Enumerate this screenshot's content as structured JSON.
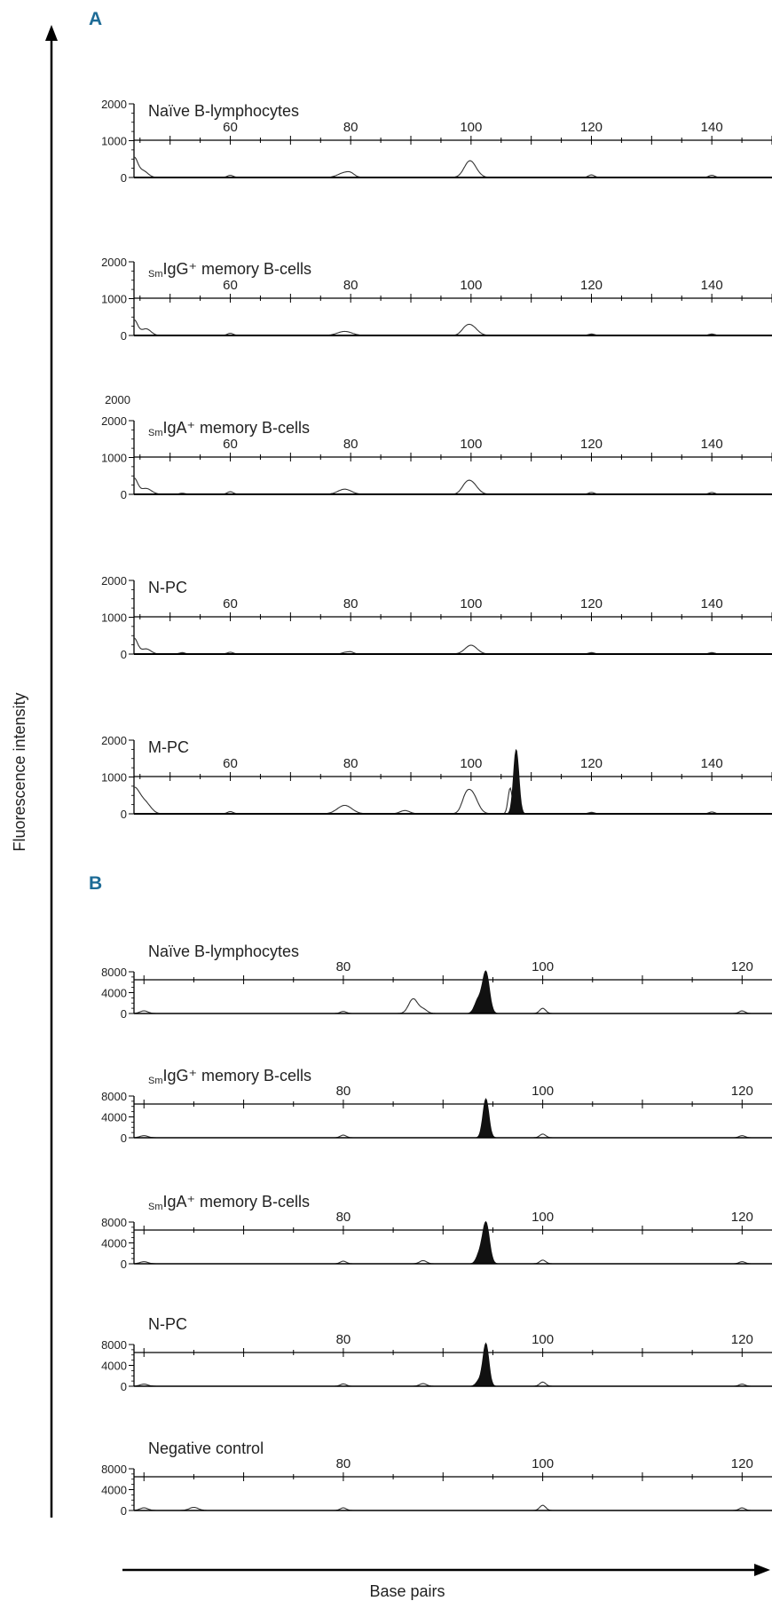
{
  "figure": {
    "y_axis_label": "Fluorescence intensity",
    "x_axis_label": "Base pairs"
  },
  "panels": {
    "A": {
      "letter": "A",
      "x_ticks": [
        60,
        80,
        100,
        120,
        140
      ],
      "y_ticks": [
        0,
        1000,
        2000
      ],
      "y_tick_labels": [
        "0",
        "1000",
        "2000"
      ],
      "x_range": [
        44,
        150
      ],
      "y_range": [
        0,
        2000
      ]
    },
    "B": {
      "letter": "B",
      "x_ticks": [
        80,
        100,
        120
      ],
      "y_ticks": [
        0,
        4000,
        8000
      ],
      "y_tick_labels": [
        "0",
        "4000",
        "8000"
      ],
      "x_range": [
        59,
        123
      ],
      "y_range": [
        0,
        8000
      ]
    }
  },
  "chart_data": [
    {
      "type": "line",
      "panel": "A",
      "title_prefix": "",
      "title": "Naïve B-lymphocytes",
      "series": [
        {
          "style": "outline",
          "peaks": [
            [
              44,
              520,
              0.6
            ],
            [
              45.5,
              180,
              0.8
            ],
            [
              60,
              60,
              0.5
            ],
            [
              79,
              130,
              1.1
            ],
            [
              80,
              60,
              0.6
            ],
            [
              100,
              350,
              1.0
            ],
            [
              99.5,
              120,
              0.8
            ],
            [
              120,
              70,
              0.5
            ],
            [
              140,
              60,
              0.5
            ]
          ]
        }
      ]
    },
    {
      "type": "line",
      "panel": "A",
      "title_prefix": "Sm",
      "title": "IgG⁺ memory B-cells",
      "series": [
        {
          "style": "outline",
          "peaks": [
            [
              44,
              420,
              0.6
            ],
            [
              46,
              180,
              0.8
            ],
            [
              60,
              60,
              0.5
            ],
            [
              79,
              110,
              1.2
            ],
            [
              100,
              260,
              1.0
            ],
            [
              99,
              90,
              0.7
            ],
            [
              120,
              40,
              0.5
            ],
            [
              140,
              40,
              0.5
            ]
          ]
        }
      ]
    },
    {
      "type": "line",
      "panel": "A",
      "title_prefix": "Sm",
      "title": "IgA⁺ memory B-cells",
      "extra_labels": [
        "2000"
      ],
      "series": [
        {
          "style": "outline",
          "peaks": [
            [
              44,
              430,
              0.6
            ],
            [
              46,
              160,
              0.9
            ],
            [
              52,
              30,
              0.5
            ],
            [
              60,
              70,
              0.5
            ],
            [
              79,
              140,
              1.1
            ],
            [
              100,
              330,
              1.0
            ],
            [
              99,
              110,
              0.7
            ],
            [
              120,
              50,
              0.5
            ],
            [
              140,
              50,
              0.5
            ]
          ]
        }
      ]
    },
    {
      "type": "line",
      "panel": "A",
      "title_prefix": "",
      "title": "N-PC",
      "series": [
        {
          "style": "outline",
          "peaks": [
            [
              44,
              430,
              0.6
            ],
            [
              46,
              140,
              0.8
            ],
            [
              52,
              40,
              0.5
            ],
            [
              60,
              50,
              0.5
            ],
            [
              79,
              40,
              0.5
            ],
            [
              80,
              60,
              0.5
            ],
            [
              100,
              240,
              1.0
            ],
            [
              120,
              40,
              0.5
            ],
            [
              140,
              40,
              0.5
            ]
          ]
        }
      ]
    },
    {
      "type": "line",
      "panel": "A",
      "title_prefix": "",
      "title": "M-PC",
      "series": [
        {
          "style": "outline",
          "peaks": [
            [
              44,
              700,
              1.0
            ],
            [
              46,
              250,
              0.9
            ],
            [
              60,
              60,
              0.5
            ],
            [
              79,
              230,
              1.2
            ],
            [
              89,
              90,
              0.8
            ],
            [
              100,
              600,
              1.0
            ],
            [
              99,
              180,
              0.6
            ],
            [
              106.5,
              700,
              0.35
            ],
            [
              120,
              40,
              0.5
            ],
            [
              140,
              50,
              0.5
            ]
          ]
        },
        {
          "style": "filled",
          "peaks": [
            [
              107.5,
              1750,
              0.45
            ]
          ]
        }
      ]
    },
    {
      "type": "line",
      "panel": "B",
      "title_prefix": "",
      "title": "Naïve B-lymphocytes",
      "series": [
        {
          "style": "outline",
          "peaks": [
            [
              60,
              500,
              0.4
            ],
            [
              80,
              400,
              0.3
            ],
            [
              87,
              2800,
              0.45
            ],
            [
              88,
              800,
              0.4
            ],
            [
              100,
              1000,
              0.3
            ],
            [
              120,
              500,
              0.3
            ]
          ]
        },
        {
          "style": "filled",
          "peaks": [
            [
              94.3,
              8000,
              0.35
            ],
            [
              93.5,
              2500,
              0.35
            ]
          ]
        }
      ]
    },
    {
      "type": "line",
      "panel": "B",
      "title_prefix": "Sm",
      "title": "IgG⁺ memory B-cells",
      "series": [
        {
          "style": "outline",
          "peaks": [
            [
              60,
              400,
              0.4
            ],
            [
              80,
              500,
              0.3
            ],
            [
              100,
              700,
              0.3
            ],
            [
              120,
              400,
              0.3
            ]
          ]
        },
        {
          "style": "filled",
          "peaks": [
            [
              94.3,
              7500,
              0.3
            ]
          ]
        }
      ]
    },
    {
      "type": "line",
      "panel": "B",
      "title_prefix": "Sm",
      "title": "IgA⁺ memory B-cells",
      "series": [
        {
          "style": "outline",
          "peaks": [
            [
              60,
              400,
              0.4
            ],
            [
              80,
              500,
              0.3
            ],
            [
              88,
              600,
              0.35
            ],
            [
              100,
              700,
              0.3
            ],
            [
              120,
              400,
              0.3
            ]
          ]
        },
        {
          "style": "filled",
          "peaks": [
            [
              94.3,
              8000,
              0.35
            ],
            [
              93.6,
              1500,
              0.3
            ]
          ]
        }
      ]
    },
    {
      "type": "line",
      "panel": "B",
      "title_prefix": "",
      "title": "N-PC",
      "series": [
        {
          "style": "outline",
          "peaks": [
            [
              60,
              400,
              0.4
            ],
            [
              80,
              450,
              0.3
            ],
            [
              88,
              500,
              0.35
            ],
            [
              100,
              800,
              0.3
            ],
            [
              120,
              400,
              0.3
            ]
          ]
        },
        {
          "style": "filled",
          "peaks": [
            [
              94.3,
              8200,
              0.3
            ],
            [
              93.6,
              1000,
              0.3
            ]
          ]
        }
      ]
    },
    {
      "type": "line",
      "panel": "B",
      "title_prefix": "",
      "title": "Negative control",
      "series": [
        {
          "style": "outline",
          "peaks": [
            [
              60,
              500,
              0.4
            ],
            [
              65,
              600,
              0.45
            ],
            [
              80,
              500,
              0.3
            ],
            [
              100,
              1000,
              0.3
            ],
            [
              120,
              500,
              0.3
            ]
          ]
        }
      ]
    }
  ]
}
